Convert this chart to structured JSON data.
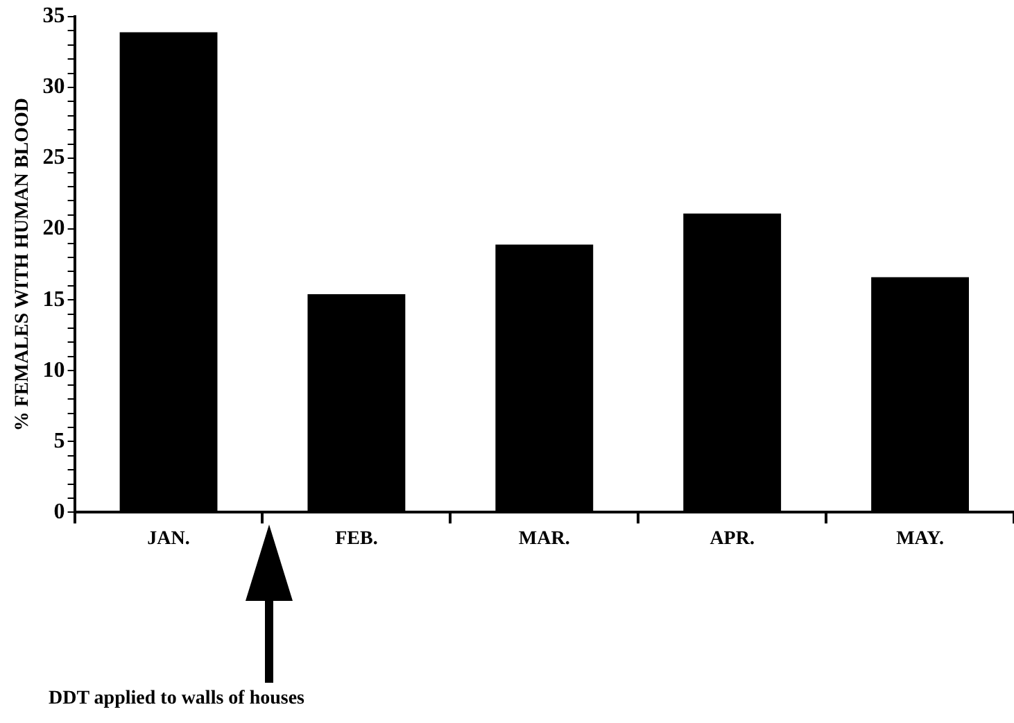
{
  "chart_data": {
    "type": "bar",
    "ylabel": "% FEMALES WITH HUMAN BLOOD",
    "categories": [
      "JAN.",
      "FEB.",
      "MAR.",
      "APR.",
      "MAY."
    ],
    "values": [
      33.9,
      15.4,
      18.9,
      21.1,
      16.6
    ],
    "color": "#000000",
    "ylim": [
      0,
      35
    ],
    "yticks": [
      0,
      {
        "value": 1,
        "label": null
      },
      {
        "value": 2,
        "label": null
      },
      {
        "value": 3,
        "label": null
      },
      {
        "value": 4,
        "label": null
      },
      5,
      {
        "value": 6,
        "label": null
      },
      {
        "value": 7,
        "label": null
      },
      {
        "value": 8,
        "label": null
      },
      {
        "value": 9,
        "label": null
      },
      10,
      {
        "value": 11,
        "label": null
      },
      {
        "value": 12,
        "label": null
      },
      {
        "value": 13,
        "label": null
      },
      {
        "value": 14,
        "label": null
      },
      15,
      {
        "value": 16,
        "label": null
      },
      {
        "value": 17,
        "label": null
      },
      {
        "value": 18,
        "label": null
      },
      {
        "value": 19,
        "label": null
      },
      20,
      {
        "value": 21,
        "label": null
      },
      {
        "value": 22,
        "label": null
      },
      {
        "value": 23,
        "label": null
      },
      {
        "value": 24,
        "label": null
      },
      25,
      {
        "value": 26,
        "label": null
      },
      {
        "value": 27,
        "label": null
      },
      {
        "value": 28,
        "label": null
      },
      {
        "value": 29,
        "label": null
      },
      30,
      {
        "value": 31,
        "label": null
      },
      {
        "value": 32,
        "label": null
      },
      {
        "value": 33,
        "label": null
      },
      {
        "value": 34,
        "label": null
      },
      35
    ],
    "grid": false,
    "legend": false,
    "annotations": [
      "DDT applied to walls of houses"
    ]
  }
}
